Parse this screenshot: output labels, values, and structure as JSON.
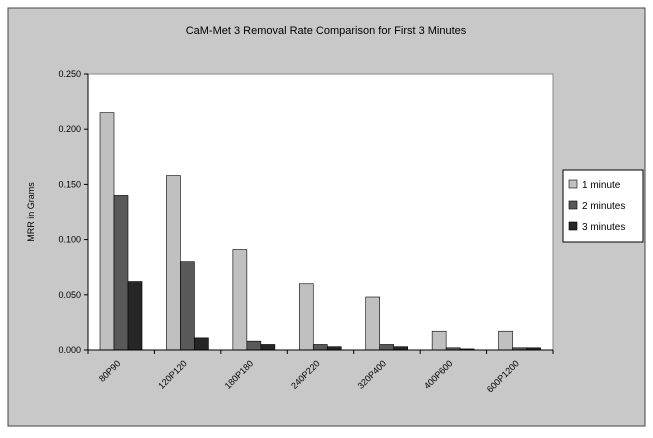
{
  "chart_data": {
    "type": "bar",
    "title": "CaM-Met 3 Removal Rate Comparison for First 3 Minutes",
    "ylabel": "MRR in Grams",
    "xlabel": "",
    "ylim": [
      0,
      0.25
    ],
    "yticks": [
      "0.000",
      "0.050",
      "0.100",
      "0.150",
      "0.200",
      "0.250"
    ],
    "categories": [
      "80P90",
      "120P120",
      "180P180",
      "240P220",
      "320P400",
      "400P600",
      "600P1200"
    ],
    "series": [
      {
        "name": "1 minute",
        "color": "#c0c0c0",
        "values": [
          0.215,
          0.158,
          0.091,
          0.06,
          0.048,
          0.017,
          0.017
        ]
      },
      {
        "name": "2 minutes",
        "color": "#595959",
        "values": [
          0.14,
          0.08,
          0.008,
          0.005,
          0.005,
          0.002,
          0.002
        ]
      },
      {
        "name": "3 minutes",
        "color": "#262626",
        "values": [
          0.062,
          0.011,
          0.005,
          0.003,
          0.003,
          0.001,
          0.002
        ]
      }
    ],
    "grid": false,
    "legend_position": "right",
    "colors": {
      "chart_area": "#c8c8c8",
      "plot_area": "#ffffff"
    }
  }
}
